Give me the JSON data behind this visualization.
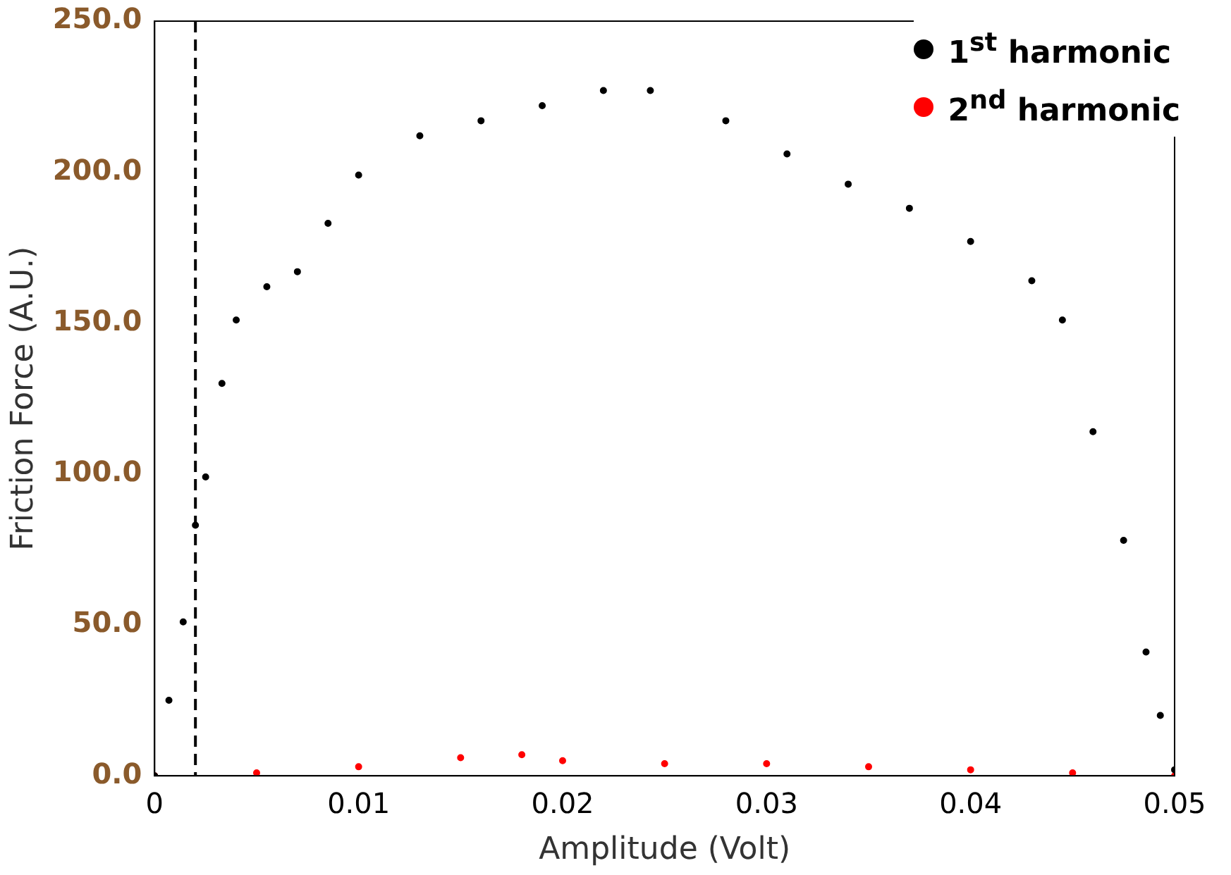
{
  "chart_data": {
    "type": "scatter",
    "xlabel": "Amplitude (Volt)",
    "ylabel": "Friction Force (A.U.)",
    "xlim": [
      0,
      0.05
    ],
    "ylim": [
      0,
      250
    ],
    "xticks": [
      0,
      0.01,
      0.02,
      0.03,
      0.04,
      0.05
    ],
    "yticks": [
      {
        "value": 0,
        "label": "0.0"
      },
      {
        "value": 50,
        "label": "50.0"
      },
      {
        "value": 100,
        "label": "100.0"
      },
      {
        "value": 150,
        "label": "150.0"
      },
      {
        "value": 200,
        "label": "200.0"
      },
      {
        "value": 250,
        "label": "250.0"
      }
    ],
    "grid": false,
    "legend": "top right",
    "marker": "circle",
    "ref_lines": [
      {
        "axis": "x",
        "value": 0.002,
        "color": "#000000",
        "line_style": "dashed"
      }
    ],
    "series": [
      {
        "name": "1$^{st}$ harmonic",
        "color": "#000000",
        "x": [
          0,
          0.0007,
          0.0014,
          0.002,
          0.0025,
          0.0033,
          0.004,
          0.0055,
          0.007,
          0.0085,
          0.01,
          0.013,
          0.016,
          0.019,
          0.022,
          0.0243,
          0.028,
          0.031,
          0.034,
          0.037,
          0.04,
          0.043,
          0.0445,
          0.046,
          0.0475,
          0.0486,
          0.0493,
          0.05
        ],
        "values": [
          0,
          25,
          51,
          83,
          99,
          130,
          151,
          162,
          167,
          183,
          199,
          212,
          217,
          222,
          227,
          227,
          217,
          206,
          196,
          188,
          177,
          164,
          151,
          114,
          78,
          41,
          20,
          2
        ]
      },
      {
        "name": "2$^{nd}$ harmonic",
        "color": "#ff0000",
        "x": [
          0,
          0.005,
          0.01,
          0.015,
          0.018,
          0.02,
          0.025,
          0.03,
          0.035,
          0.04,
          0.045,
          0.05
        ],
        "values": [
          0,
          1,
          3,
          6,
          7,
          5,
          4,
          4,
          3,
          2,
          1,
          0
        ]
      }
    ]
  }
}
